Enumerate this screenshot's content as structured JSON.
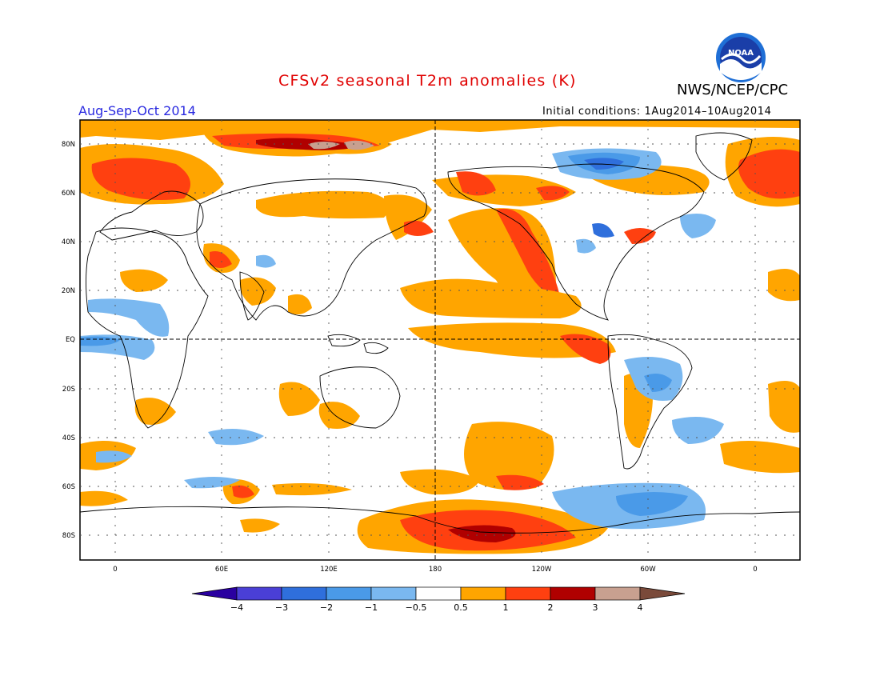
{
  "title": "CFSv2 seasonal T2m anomalies (K)",
  "period": "Aug-Sep-Oct 2014",
  "initial_conditions": "Initial conditions: 1Aug2014–10Aug2014",
  "agency": "NWS/NCEP/CPC",
  "logo_text": "NOAA",
  "lat_labels": [
    "80N",
    "60N",
    "40N",
    "20N",
    "EQ",
    "20S",
    "40S",
    "60S",
    "80S"
  ],
  "lon_labels": [
    "0",
    "60E",
    "120E",
    "180",
    "120W",
    "60W",
    "0"
  ],
  "colorbar": {
    "labels": [
      "−4",
      "−3",
      "−2",
      "−1",
      "−0.5",
      "0.5",
      "1",
      "2",
      "3",
      "4"
    ],
    "colors": [
      "#2a00a0",
      "#4a3fd6",
      "#2f6fdc",
      "#4a9ae8",
      "#7ab8f0",
      "#ffffff",
      "#ffa500",
      "#ff4010",
      "#b00000",
      "#c8a090",
      "#7a4a3a"
    ]
  },
  "colors": {
    "title": "#e00000",
    "period": "#2a2ae0",
    "orange": "#ffa500",
    "red": "#ff4010",
    "darkred": "#b00000",
    "light_blue": "#7ab8f0",
    "mid_blue": "#4a9ae8",
    "dark_blue": "#2f6fdc"
  }
}
